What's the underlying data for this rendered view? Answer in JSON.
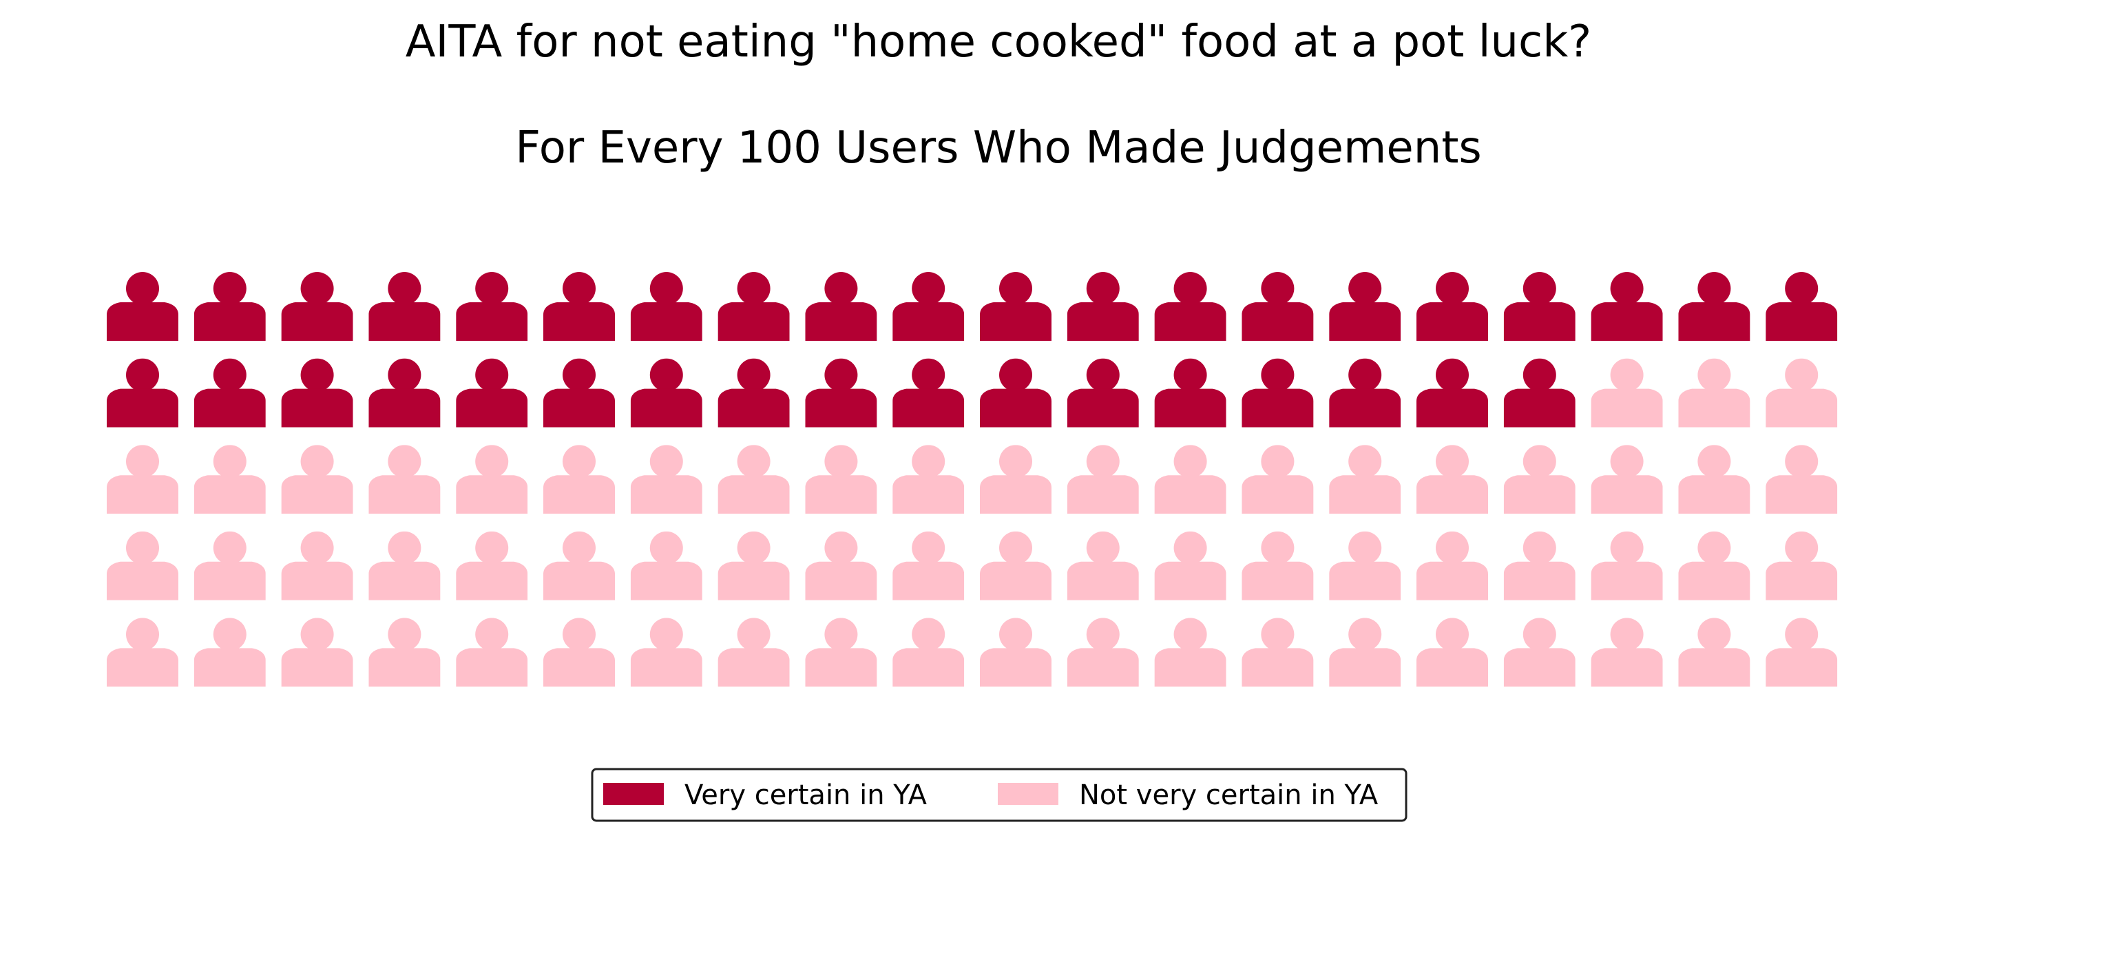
{
  "chart_data": {
    "type": "waffle",
    "title": "AITA for not eating \"home cooked\" food at a pot luck?",
    "subtitle": "For Every 100 Users Who Made Judgements",
    "icon": "person-icon",
    "grid": {
      "rows": 5,
      "columns": 20
    },
    "categories": [
      "Very certain in YA",
      "Not very certain in YA"
    ],
    "values": [
      37,
      63
    ],
    "colors": [
      "#b30033",
      "#ffc0cb"
    ],
    "legend_position": "bottom-center",
    "legend_columns": 2
  }
}
